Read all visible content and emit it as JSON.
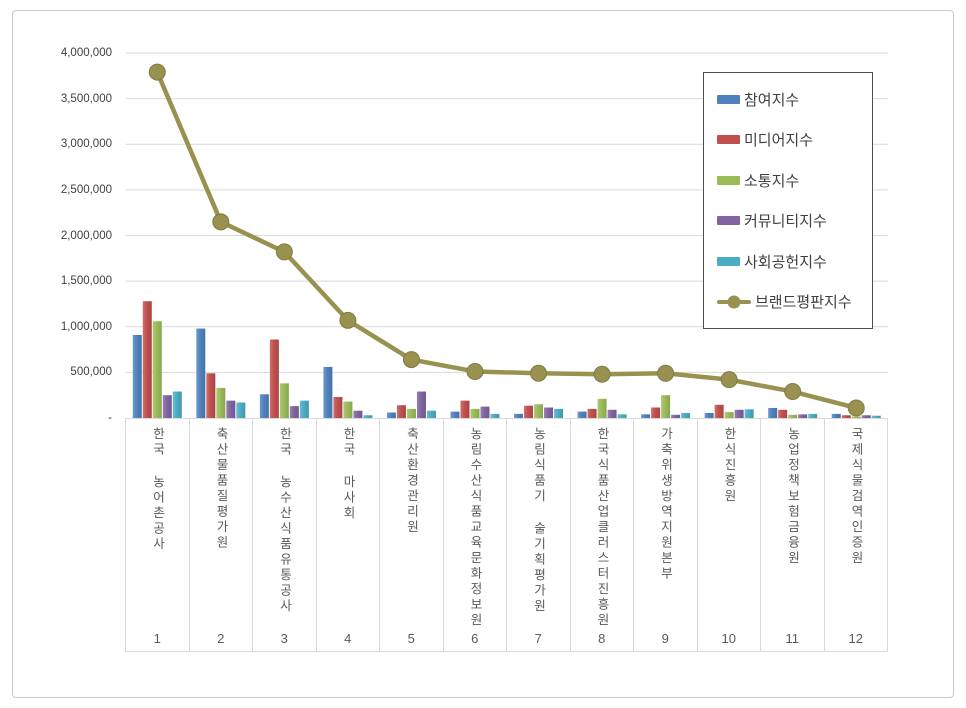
{
  "chart_data": {
    "type": "bar",
    "subtype": "grouped-bars-with-line-overlay",
    "title": "",
    "categories": [
      "한국 농어촌공사",
      "축산물품질평가원",
      "한국 농수산식품유통공사",
      "한국 마사회",
      "축산환경관리원",
      "농림수산식품교육문화정보원",
      "농림식품기 술기획평가원",
      "한국식품산업클러스터진흥원",
      "가축위생방역지원본부",
      "한식진흥원",
      "농업정책보험금융원",
      "국제식물검역인증원"
    ],
    "ranks": [
      "1",
      "2",
      "3",
      "4",
      "5",
      "6",
      "7",
      "8",
      "9",
      "10",
      "11",
      "12"
    ],
    "series": [
      {
        "name": "참여지수",
        "type": "bar",
        "color": "#4f81bd",
        "values": [
          910000,
          980000,
          260000,
          560000,
          60000,
          70000,
          45000,
          70000,
          40000,
          55000,
          110000,
          45000
        ]
      },
      {
        "name": "미디어지수",
        "type": "bar",
        "color": "#c0504d",
        "values": [
          1280000,
          490000,
          860000,
          230000,
          140000,
          190000,
          135000,
          100000,
          115000,
          145000,
          90000,
          30000
        ]
      },
      {
        "name": "소통지수",
        "type": "bar",
        "color": "#9bbb59",
        "values": [
          1060000,
          330000,
          380000,
          180000,
          100000,
          100000,
          150000,
          210000,
          250000,
          65000,
          35000,
          15000
        ]
      },
      {
        "name": "커뮤니티지수",
        "type": "bar",
        "color": "#8064a2",
        "values": [
          250000,
          190000,
          130000,
          80000,
          290000,
          125000,
          115000,
          90000,
          35000,
          90000,
          40000,
          30000
        ]
      },
      {
        "name": "사회공헌지수",
        "type": "bar",
        "color": "#4bacc6",
        "values": [
          290000,
          170000,
          190000,
          30000,
          80000,
          45000,
          100000,
          40000,
          55000,
          95000,
          45000,
          25000
        ]
      },
      {
        "name": "브랜드평판지수",
        "type": "line",
        "color": "#98914f",
        "values": [
          3790000,
          2150000,
          1820000,
          1070000,
          640000,
          510000,
          490000,
          480000,
          490000,
          420000,
          290000,
          110000
        ]
      }
    ],
    "xlabel": "",
    "ylabel": "",
    "ylim": [
      0,
      4000000
    ],
    "y_step": 500000,
    "y_tick_labels": [
      "4,000,000",
      "3,500,000",
      "3,000,000",
      "2,500,000",
      "2,000,000",
      "1,500,000",
      "1,000,000",
      "500,000",
      "-"
    ],
    "grid": "horizontal",
    "gridline_color": "#d9d9d9",
    "legend_position": "inside-top-right"
  }
}
